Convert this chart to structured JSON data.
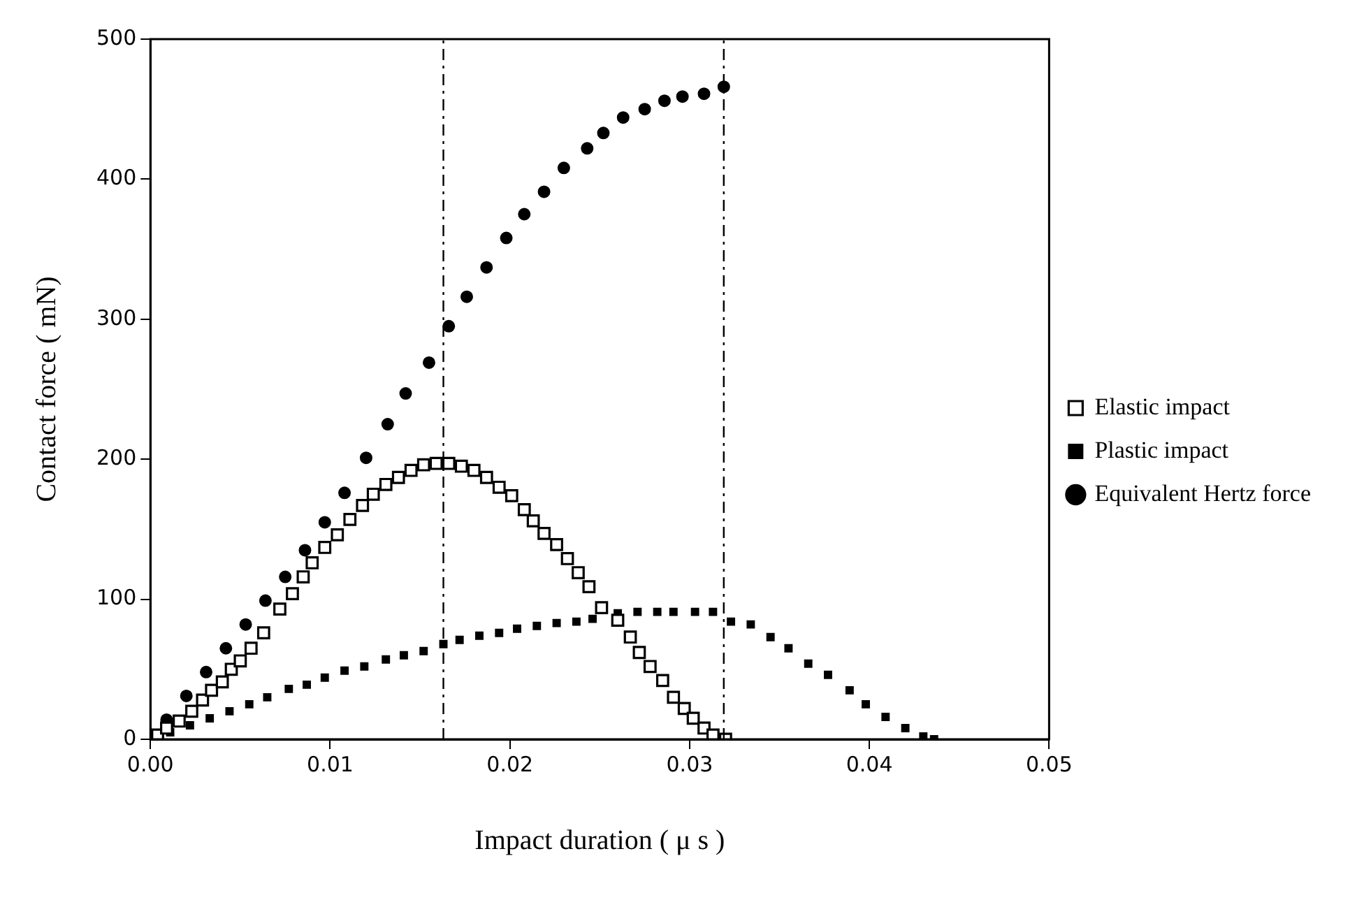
{
  "chart_data": {
    "type": "scatter",
    "xlabel": "Impact duration ( μ s )",
    "ylabel": "Contact force ( mN)",
    "xlim": [
      0,
      0.05
    ],
    "xticks": [
      {
        "value": 0,
        "label": "0.00"
      },
      {
        "value": 0.01,
        "label": "0.01"
      },
      {
        "value": 0.02,
        "label": "0.02"
      },
      {
        "value": 0.03,
        "label": "0.03"
      },
      {
        "value": 0.04,
        "label": "0.04"
      },
      {
        "value": 0.05,
        "label": "0.05"
      }
    ],
    "ylim": [
      0,
      500
    ],
    "yticks": [
      0,
      100,
      200,
      300,
      400,
      500
    ],
    "grid": false,
    "legend": "right",
    "ref_lines": [
      {
        "axis": "x",
        "value": 0.0163,
        "line_style": "dashed"
      },
      {
        "axis": "x",
        "value": 0.0319,
        "line_style": "dashed"
      }
    ],
    "series": [
      {
        "name": "Elastic impact",
        "color": "#000000",
        "marker": "square",
        "x": [
          0.0004,
          0.0009,
          0.0016,
          0.0023,
          0.0029,
          0.0034,
          0.004,
          0.0045,
          0.005,
          0.0056,
          0.0063,
          0.0072,
          0.0079,
          0.0085,
          0.009,
          0.0097,
          0.0104,
          0.0111,
          0.0118,
          0.0124,
          0.0131,
          0.0138,
          0.0145,
          0.0152,
          0.0159,
          0.0166,
          0.0173,
          0.018,
          0.0187,
          0.0194,
          0.0201,
          0.0208,
          0.0213,
          0.0219,
          0.0226,
          0.0232,
          0.0238,
          0.0244,
          0.0251,
          0.026,
          0.0267,
          0.0272,
          0.0278,
          0.0285,
          0.0291,
          0.0297,
          0.0302,
          0.0308,
          0.0313,
          0.032
        ],
        "values": [
          3,
          8,
          13,
          20,
          28,
          35,
          41,
          50,
          56,
          65,
          76,
          93,
          104,
          116,
          126,
          137,
          146,
          157,
          167,
          175,
          182,
          187,
          192,
          196,
          197,
          197,
          195,
          192,
          187,
          180,
          174,
          164,
          156,
          147,
          139,
          129,
          119,
          109,
          94,
          85,
          73,
          62,
          52,
          42,
          30,
          22,
          15,
          8,
          3,
          0
        ]
      },
      {
        "name": "Plastic impact",
        "color": "#000000",
        "marker": "square",
        "x": [
          0.0011,
          0.0022,
          0.0033,
          0.0044,
          0.0055,
          0.0065,
          0.0077,
          0.0087,
          0.0097,
          0.0108,
          0.0119,
          0.0131,
          0.0141,
          0.0152,
          0.0163,
          0.0172,
          0.0183,
          0.0194,
          0.0204,
          0.0215,
          0.0226,
          0.0237,
          0.0246,
          0.026,
          0.0271,
          0.0282,
          0.0291,
          0.0303,
          0.0313,
          0.0323,
          0.0334,
          0.0345,
          0.0355,
          0.0366,
          0.0377,
          0.0389,
          0.0398,
          0.0409,
          0.042,
          0.043,
          0.0436
        ],
        "values": [
          5,
          10,
          15,
          20,
          25,
          30,
          36,
          39,
          44,
          49,
          52,
          57,
          60,
          63,
          68,
          71,
          74,
          76,
          79,
          81,
          83,
          84,
          86,
          90,
          91,
          91,
          91,
          91,
          91,
          84,
          82,
          73,
          65,
          54,
          46,
          35,
          25,
          16,
          8,
          2,
          0
        ]
      },
      {
        "name": "Equivalent Hertz force",
        "color": "#000000",
        "marker": "circle",
        "x": [
          0.0009,
          0.002,
          0.0031,
          0.0042,
          0.0053,
          0.0064,
          0.0075,
          0.0086,
          0.0097,
          0.0108,
          0.012,
          0.0132,
          0.0142,
          0.0155,
          0.0166,
          0.0176,
          0.0187,
          0.0198,
          0.0208,
          0.0219,
          0.023,
          0.0243,
          0.0252,
          0.0263,
          0.0275,
          0.0286,
          0.0296,
          0.0308,
          0.0319
        ],
        "values": [
          14,
          31,
          48,
          65,
          82,
          99,
          116,
          135,
          155,
          176,
          201,
          225,
          247,
          269,
          295,
          316,
          337,
          358,
          375,
          391,
          408,
          422,
          433,
          444,
          450,
          456,
          459,
          461,
          466
        ]
      }
    ]
  }
}
